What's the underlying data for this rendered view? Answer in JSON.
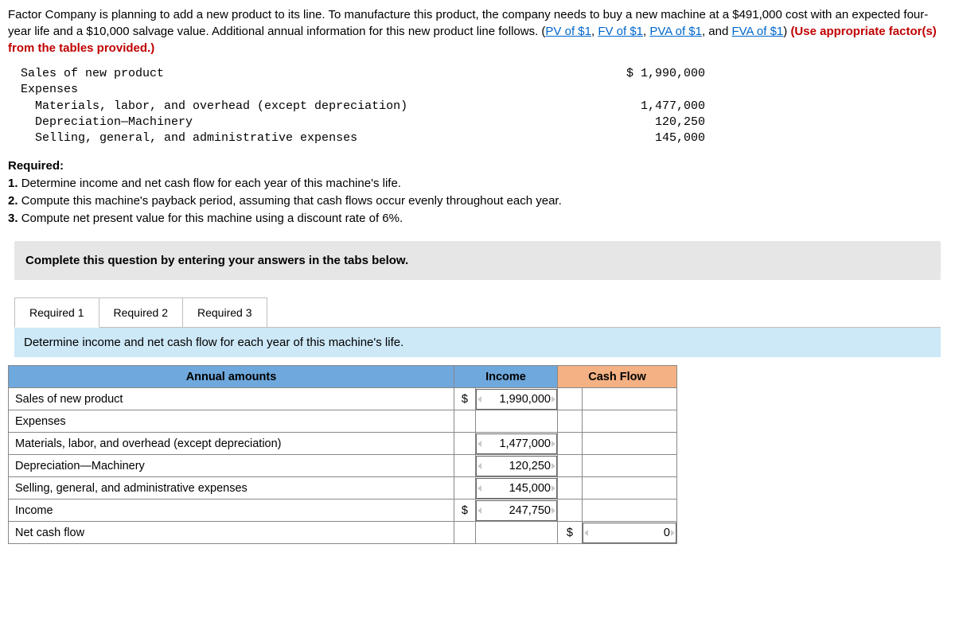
{
  "intro": {
    "text_before_links": "Factor Company is planning to add a new product to its line. To manufacture this product, the company needs to buy a new machine at a $491,000 cost with an expected four-year life and a $10,000 salvage value. Additional annual information for this new product line follows. (",
    "links": [
      "PV of $1",
      "FV of $1",
      "PVA of $1",
      "FVA of $1"
    ],
    "link_sep": ", ",
    "link_last_sep": ", and ",
    "after_links": ") ",
    "red_text": "(Use appropriate factor(s) from the tables provided.)"
  },
  "given": {
    "rows": [
      {
        "label": "Sales of new product",
        "value": "$ 1,990,000"
      },
      {
        "label": "Expenses",
        "value": ""
      },
      {
        "label": "  Materials, labor, and overhead (except depreciation)",
        "value": "1,477,000"
      },
      {
        "label": "  Depreciation—Machinery",
        "value": "120,250"
      },
      {
        "label": "  Selling, general, and administrative expenses",
        "value": "145,000"
      }
    ]
  },
  "required": {
    "heading": "Required:",
    "items": [
      "Determine income and net cash flow for each year of this machine's life.",
      "Compute this machine's payback period, assuming that cash flows occur evenly throughout each year.",
      "Compute net present value for this machine using a discount rate of 6%."
    ]
  },
  "instruction": "Complete this question by entering your answers in the tabs below.",
  "tabs": {
    "items": [
      "Required 1",
      "Required 2",
      "Required 3"
    ],
    "active": 0,
    "desc": "Determine income and net cash flow for each year of this machine's life."
  },
  "answer_table": {
    "headers": {
      "label": "Annual amounts",
      "income": "Income",
      "cash": "Cash Flow"
    },
    "rows": [
      {
        "label": "Sales of new product",
        "income_cur": "$",
        "income": "1,990,000",
        "cash_cur": "",
        "cash": "",
        "indent": false,
        "income_input": true,
        "cash_input": false
      },
      {
        "label": "Expenses",
        "income_cur": "",
        "income": "",
        "cash_cur": "",
        "cash": "",
        "indent": false,
        "income_input": false,
        "cash_input": false
      },
      {
        "label": "Materials, labor, and overhead (except depreciation)",
        "income_cur": "",
        "income": "1,477,000",
        "cash_cur": "",
        "cash": "",
        "indent": true,
        "income_input": true,
        "cash_input": false
      },
      {
        "label": "Depreciation—Machinery",
        "income_cur": "",
        "income": "120,250",
        "cash_cur": "",
        "cash": "",
        "indent": true,
        "income_input": true,
        "cash_input": false
      },
      {
        "label": "Selling, general, and administrative expenses",
        "income_cur": "",
        "income": "145,000",
        "cash_cur": "",
        "cash": "",
        "indent": true,
        "income_input": true,
        "cash_input": false
      },
      {
        "label": "Income",
        "income_cur": "$",
        "income": "247,750",
        "cash_cur": "",
        "cash": "",
        "indent": false,
        "income_input": true,
        "cash_input": false
      },
      {
        "label": "Net cash flow",
        "income_cur": "",
        "income": "",
        "cash_cur": "$",
        "cash": "0",
        "indent": false,
        "income_input": false,
        "cash_input": true
      }
    ]
  },
  "style": {
    "header_blue": "#6fa8dc",
    "header_orange": "#f4b183",
    "desc_bar_bg": "#cde8f7",
    "instruction_bg": "#e6e6e6",
    "link_color": "#0066cc",
    "red": "#c00000"
  }
}
